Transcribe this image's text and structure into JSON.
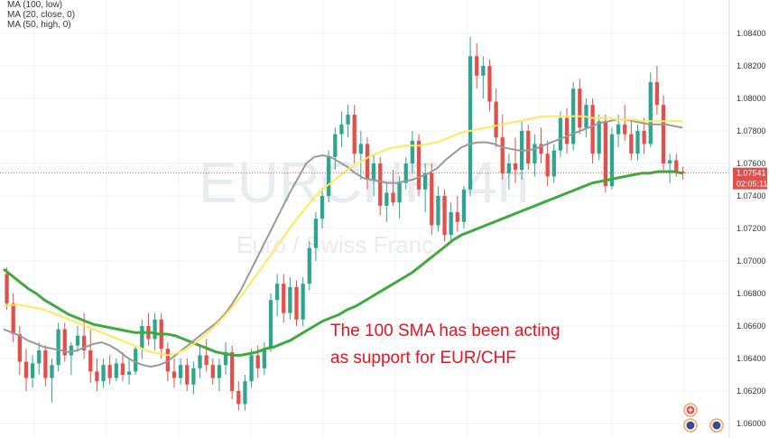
{
  "legend": [
    "MA (100, low)",
    "MA (20, close, 0)",
    "MA (50, high, 0)"
  ],
  "watermark": {
    "symbol": "EURCHF, 4h",
    "description": "Euro / Swiss Franc"
  },
  "annotation": {
    "line1": "The 100 SMA has been acting",
    "line2": "as support for EUR/CHF"
  },
  "price_tag": {
    "price": "1.07541",
    "countdown": "02:05:11"
  },
  "colors": {
    "up": "#2ea58f",
    "down": "#e2504b",
    "ma100": "#3faa3f",
    "ma20": "#999999",
    "ma50": "#ffe95a",
    "annotation": "#e3151f",
    "price_tag": "#e2504b"
  },
  "icons": [
    "plus-circle-icon",
    "target-icon",
    "settings-icon"
  ],
  "chart_data": {
    "type": "candlestick",
    "title": "",
    "xlabel": "",
    "ylabel": "",
    "ylim": [
      1.0595,
      1.0855
    ],
    "grid": true,
    "y_ticks": [
      "1.08400",
      "1.08200",
      "1.08000",
      "1.07800",
      "1.07600",
      "1.07400",
      "1.07200",
      "1.07000",
      "1.06800",
      "1.06600",
      "1.06400",
      "1.06200",
      "1.06000"
    ],
    "last_price": 1.07541,
    "candles": [
      [
        1.0692,
        1.0696,
        1.067,
        1.0674
      ],
      [
        1.0674,
        1.068,
        1.065,
        1.0655
      ],
      [
        1.0655,
        1.066,
        1.063,
        1.0638
      ],
      [
        1.0638,
        1.0646,
        1.062,
        1.0628
      ],
      [
        1.0628,
        1.0642,
        1.0622,
        1.0637
      ],
      [
        1.0637,
        1.065,
        1.063,
        1.0645
      ],
      [
        1.0645,
        1.0648,
        1.0623,
        1.0628
      ],
      [
        1.0628,
        1.064,
        1.0613,
        1.0636
      ],
      [
        1.0636,
        1.0662,
        1.0632,
        1.0658
      ],
      [
        1.0658,
        1.0662,
        1.0638,
        1.0642
      ],
      [
        1.0642,
        1.065,
        1.063,
        1.0648
      ],
      [
        1.0648,
        1.066,
        1.0644,
        1.0654
      ],
      [
        1.0654,
        1.0668,
        1.064,
        1.0645
      ],
      [
        1.0645,
        1.0658,
        1.0625,
        1.0632
      ],
      [
        1.0632,
        1.064,
        1.062,
        1.0626
      ],
      [
        1.0626,
        1.064,
        1.0622,
        1.0636
      ],
      [
        1.0636,
        1.0642,
        1.0624,
        1.0628
      ],
      [
        1.0628,
        1.064,
        1.0626,
        1.0637
      ],
      [
        1.0637,
        1.0644,
        1.0626,
        1.063
      ],
      [
        1.063,
        1.064,
        1.0624,
        1.0632
      ],
      [
        1.0632,
        1.0648,
        1.063,
        1.0646
      ],
      [
        1.0646,
        1.0664,
        1.064,
        1.066
      ],
      [
        1.066,
        1.0668,
        1.0648,
        1.0652
      ],
      [
        1.0652,
        1.0668,
        1.0645,
        1.0664
      ],
      [
        1.0664,
        1.0668,
        1.064,
        1.0646
      ],
      [
        1.0646,
        1.065,
        1.0626,
        1.0632
      ],
      [
        1.0632,
        1.064,
        1.0622,
        1.0628
      ],
      [
        1.0628,
        1.064,
        1.0624,
        1.0636
      ],
      [
        1.0636,
        1.064,
        1.062,
        1.0624
      ],
      [
        1.0624,
        1.0638,
        1.0618,
        1.0634
      ],
      [
        1.0634,
        1.0648,
        1.0628,
        1.0642
      ],
      [
        1.0642,
        1.0652,
        1.0632,
        1.0636
      ],
      [
        1.0636,
        1.064,
        1.0624,
        1.0628
      ],
      [
        1.0628,
        1.064,
        1.062,
        1.0636
      ],
      [
        1.0636,
        1.065,
        1.063,
        1.0644
      ],
      [
        1.0644,
        1.0648,
        1.0615,
        1.062
      ],
      [
        1.062,
        1.0626,
        1.0608,
        1.0612
      ],
      [
        1.0612,
        1.063,
        1.0608,
        1.0626
      ],
      [
        1.0626,
        1.0646,
        1.0622,
        1.0642
      ],
      [
        1.0642,
        1.0648,
        1.0628,
        1.0634
      ],
      [
        1.0634,
        1.065,
        1.063,
        1.0646
      ],
      [
        1.0646,
        1.068,
        1.0644,
        1.0676
      ],
      [
        1.0676,
        1.0692,
        1.0666,
        1.0686
      ],
      [
        1.0686,
        1.0692,
        1.0662,
        1.0668
      ],
      [
        1.0668,
        1.069,
        1.0664,
        1.0684
      ],
      [
        1.0684,
        1.0688,
        1.066,
        1.0664
      ],
      [
        1.0664,
        1.069,
        1.066,
        1.0686
      ],
      [
        1.0686,
        1.0712,
        1.0682,
        1.0708
      ],
      [
        1.0708,
        1.073,
        1.07,
        1.0726
      ],
      [
        1.0726,
        1.0745,
        1.072,
        1.074
      ],
      [
        1.074,
        1.0768,
        1.0736,
        1.0764
      ],
      [
        1.0764,
        1.0782,
        1.0756,
        1.0778
      ],
      [
        1.0778,
        1.0792,
        1.077,
        1.0784
      ],
      [
        1.0784,
        1.0796,
        1.0776,
        1.079
      ],
      [
        1.079,
        1.0796,
        1.076,
        1.0766
      ],
      [
        1.0766,
        1.078,
        1.075,
        1.0772
      ],
      [
        1.0772,
        1.0776,
        1.0744,
        1.075
      ],
      [
        1.075,
        1.0766,
        1.074,
        1.076
      ],
      [
        1.076,
        1.0764,
        1.0728,
        1.0734
      ],
      [
        1.0734,
        1.0748,
        1.0724,
        1.0742
      ],
      [
        1.0742,
        1.0756,
        1.0734,
        1.0736
      ],
      [
        1.0736,
        1.0752,
        1.0726,
        1.0748
      ],
      [
        1.0748,
        1.0764,
        1.0744,
        1.076
      ],
      [
        1.076,
        1.078,
        1.0754,
        1.0774
      ],
      [
        1.0774,
        1.0778,
        1.074,
        1.0744
      ],
      [
        1.0744,
        1.076,
        1.073,
        1.0754
      ],
      [
        1.0754,
        1.076,
        1.0716,
        1.0722
      ],
      [
        1.0722,
        1.0746,
        1.0718,
        1.074
      ],
      [
        1.074,
        1.0744,
        1.0712,
        1.0716
      ],
      [
        1.0716,
        1.0736,
        1.0712,
        1.073
      ],
      [
        1.073,
        1.074,
        1.0718,
        1.0724
      ],
      [
        1.0724,
        1.0746,
        1.072,
        1.0744
      ],
      [
        1.0744,
        1.0838,
        1.074,
        1.0826
      ],
      [
        1.0826,
        1.0834,
        1.0806,
        1.0814
      ],
      [
        1.0814,
        1.0826,
        1.08,
        1.082
      ],
      [
        1.082,
        1.0824,
        1.0792,
        1.0798
      ],
      [
        1.0798,
        1.0806,
        1.077,
        1.0776
      ],
      [
        1.0776,
        1.079,
        1.075,
        1.0754
      ],
      [
        1.0754,
        1.0766,
        1.0744,
        1.076
      ],
      [
        1.076,
        1.0776,
        1.0748,
        1.0756
      ],
      [
        1.0756,
        1.0786,
        1.075,
        1.078
      ],
      [
        1.078,
        1.0784,
        1.0756,
        1.076
      ],
      [
        1.076,
        1.0778,
        1.0752,
        1.0772
      ],
      [
        1.0772,
        1.0782,
        1.076,
        1.0766
      ],
      [
        1.0766,
        1.0774,
        1.0746,
        1.0752
      ],
      [
        1.0752,
        1.0772,
        1.0748,
        1.0768
      ],
      [
        1.0768,
        1.0792,
        1.0764,
        1.0788
      ],
      [
        1.0788,
        1.0794,
        1.0766,
        1.0772
      ],
      [
        1.0772,
        1.081,
        1.0768,
        1.0806
      ],
      [
        1.0806,
        1.0812,
        1.0778,
        1.0782
      ],
      [
        1.0782,
        1.08,
        1.0776,
        1.0796
      ],
      [
        1.0796,
        1.08,
        1.076,
        1.0766
      ],
      [
        1.0766,
        1.079,
        1.0762,
        1.0786
      ],
      [
        1.0786,
        1.079,
        1.0742,
        1.0746
      ],
      [
        1.0746,
        1.0782,
        1.0744,
        1.0778
      ],
      [
        1.0778,
        1.079,
        1.077,
        1.0784
      ],
      [
        1.0784,
        1.0796,
        1.0774,
        1.0778
      ],
      [
        1.0778,
        1.0786,
        1.0762,
        1.0766
      ],
      [
        1.0766,
        1.0784,
        1.0762,
        1.078
      ],
      [
        1.078,
        1.0788,
        1.0766,
        1.0772
      ],
      [
        1.0772,
        1.0816,
        1.077,
        1.081
      ],
      [
        1.081,
        1.082,
        1.079,
        1.0796
      ],
      [
        1.0796,
        1.0802,
        1.0756,
        1.076
      ],
      [
        1.076,
        1.0766,
        1.0748,
        1.0762
      ],
      [
        1.0762,
        1.0766,
        1.0752,
        1.0755
      ],
      [
        1.0755,
        1.0758,
        1.075,
        1.0754
      ]
    ],
    "series": [
      {
        "name": "MA (100, low)",
        "color": "#3faa3f",
        "values": [
          1.0695,
          1.0691,
          1.0687,
          1.0683,
          1.068,
          1.0676,
          1.0673,
          1.067,
          1.0667,
          1.0665,
          1.0663,
          1.0661,
          1.066,
          1.0659,
          1.0658,
          1.0657,
          1.0656,
          1.0656,
          1.0656,
          1.0655,
          1.0655,
          1.0654,
          1.0652,
          1.065,
          1.0648,
          1.0646,
          1.0644,
          1.0643,
          1.0642,
          1.0642,
          1.0643,
          1.0644,
          1.0646,
          1.0647,
          1.0649,
          1.0651,
          1.0654,
          1.0657,
          1.066,
          1.0663,
          1.0665,
          1.0667,
          1.067,
          1.0672,
          1.0675,
          1.0678,
          1.0681,
          1.0684,
          1.0687,
          1.069,
          1.0693,
          1.0697,
          1.0701,
          1.0705,
          1.0709,
          1.0713,
          1.0716,
          1.0718,
          1.072,
          1.0722,
          1.0724,
          1.0726,
          1.0728,
          1.073,
          1.0732,
          1.0734,
          1.0736,
          1.0738,
          1.074,
          1.0742,
          1.0744,
          1.0746,
          1.0748,
          1.0749,
          1.075,
          1.0751,
          1.0752,
          1.0753,
          1.0754,
          1.0754,
          1.0755,
          1.0755,
          1.0755,
          1.0754
        ]
      },
      {
        "name": "MA (20, close, 0)",
        "color": "#999999",
        "values": [
          1.0658,
          1.0656,
          1.0654,
          1.0651,
          1.0649,
          1.0647,
          1.0646,
          1.0645,
          1.0644,
          1.0645,
          1.0647,
          1.0649,
          1.065,
          1.0648,
          1.0645,
          1.0641,
          1.0638,
          1.0636,
          1.0635,
          1.0636,
          1.0638,
          1.0642,
          1.0646,
          1.065,
          1.0654,
          1.0658,
          1.0662,
          1.0667,
          1.0674,
          1.0682,
          1.0692,
          1.0702,
          1.0712,
          1.0722,
          1.0732,
          1.0742,
          1.0751,
          1.076,
          1.0764,
          1.0765,
          1.0764,
          1.0761,
          1.0758,
          1.0754,
          1.0751,
          1.075,
          1.0749,
          1.0748,
          1.0748,
          1.0749,
          1.075,
          1.0752,
          1.0754,
          1.0757,
          1.0762,
          1.0766,
          1.077,
          1.0772,
          1.0773,
          1.0773,
          1.0772,
          1.077,
          1.0769,
          1.0768,
          1.0768,
          1.0769,
          1.0771,
          1.0773,
          1.0775,
          1.0777,
          1.0779,
          1.0781,
          1.0783,
          1.0785,
          1.0786,
          1.0787,
          1.0787,
          1.0786,
          1.0785,
          1.0784,
          1.0784,
          1.0784,
          1.0783,
          1.0782
        ]
      },
      {
        "name": "MA (50, high, 0)",
        "color": "#ffe95a",
        "values": [
          1.0672,
          1.0673,
          1.0673,
          1.0672,
          1.0671,
          1.067,
          1.0668,
          1.0666,
          1.0664,
          1.0662,
          1.066,
          1.0658,
          1.0656,
          1.0654,
          1.0652,
          1.065,
          1.0648,
          1.0646,
          1.0644,
          1.0643,
          1.0642,
          1.0643,
          1.0645,
          1.0648,
          1.0652,
          1.0656,
          1.0661,
          1.0666,
          1.0672,
          1.0678,
          1.0685,
          1.0692,
          1.0699,
          1.0706,
          1.0713,
          1.072,
          1.0727,
          1.0733,
          1.0739,
          1.0744,
          1.0748,
          1.0752,
          1.0756,
          1.0759,
          1.0762,
          1.0765,
          1.0767,
          1.0769,
          1.077,
          1.0771,
          1.0771,
          1.0771,
          1.0772,
          1.0773,
          1.0775,
          1.0777,
          1.0779,
          1.078,
          1.0781,
          1.0782,
          1.0783,
          1.0784,
          1.0785,
          1.0786,
          1.0787,
          1.0788,
          1.0789,
          1.0789,
          1.0789,
          1.0789,
          1.0789,
          1.0789,
          1.0788,
          1.0788,
          1.0788,
          1.0787,
          1.0787,
          1.0787,
          1.0786,
          1.0786,
          1.0786,
          1.0786,
          1.0786,
          1.0786
        ]
      }
    ]
  }
}
